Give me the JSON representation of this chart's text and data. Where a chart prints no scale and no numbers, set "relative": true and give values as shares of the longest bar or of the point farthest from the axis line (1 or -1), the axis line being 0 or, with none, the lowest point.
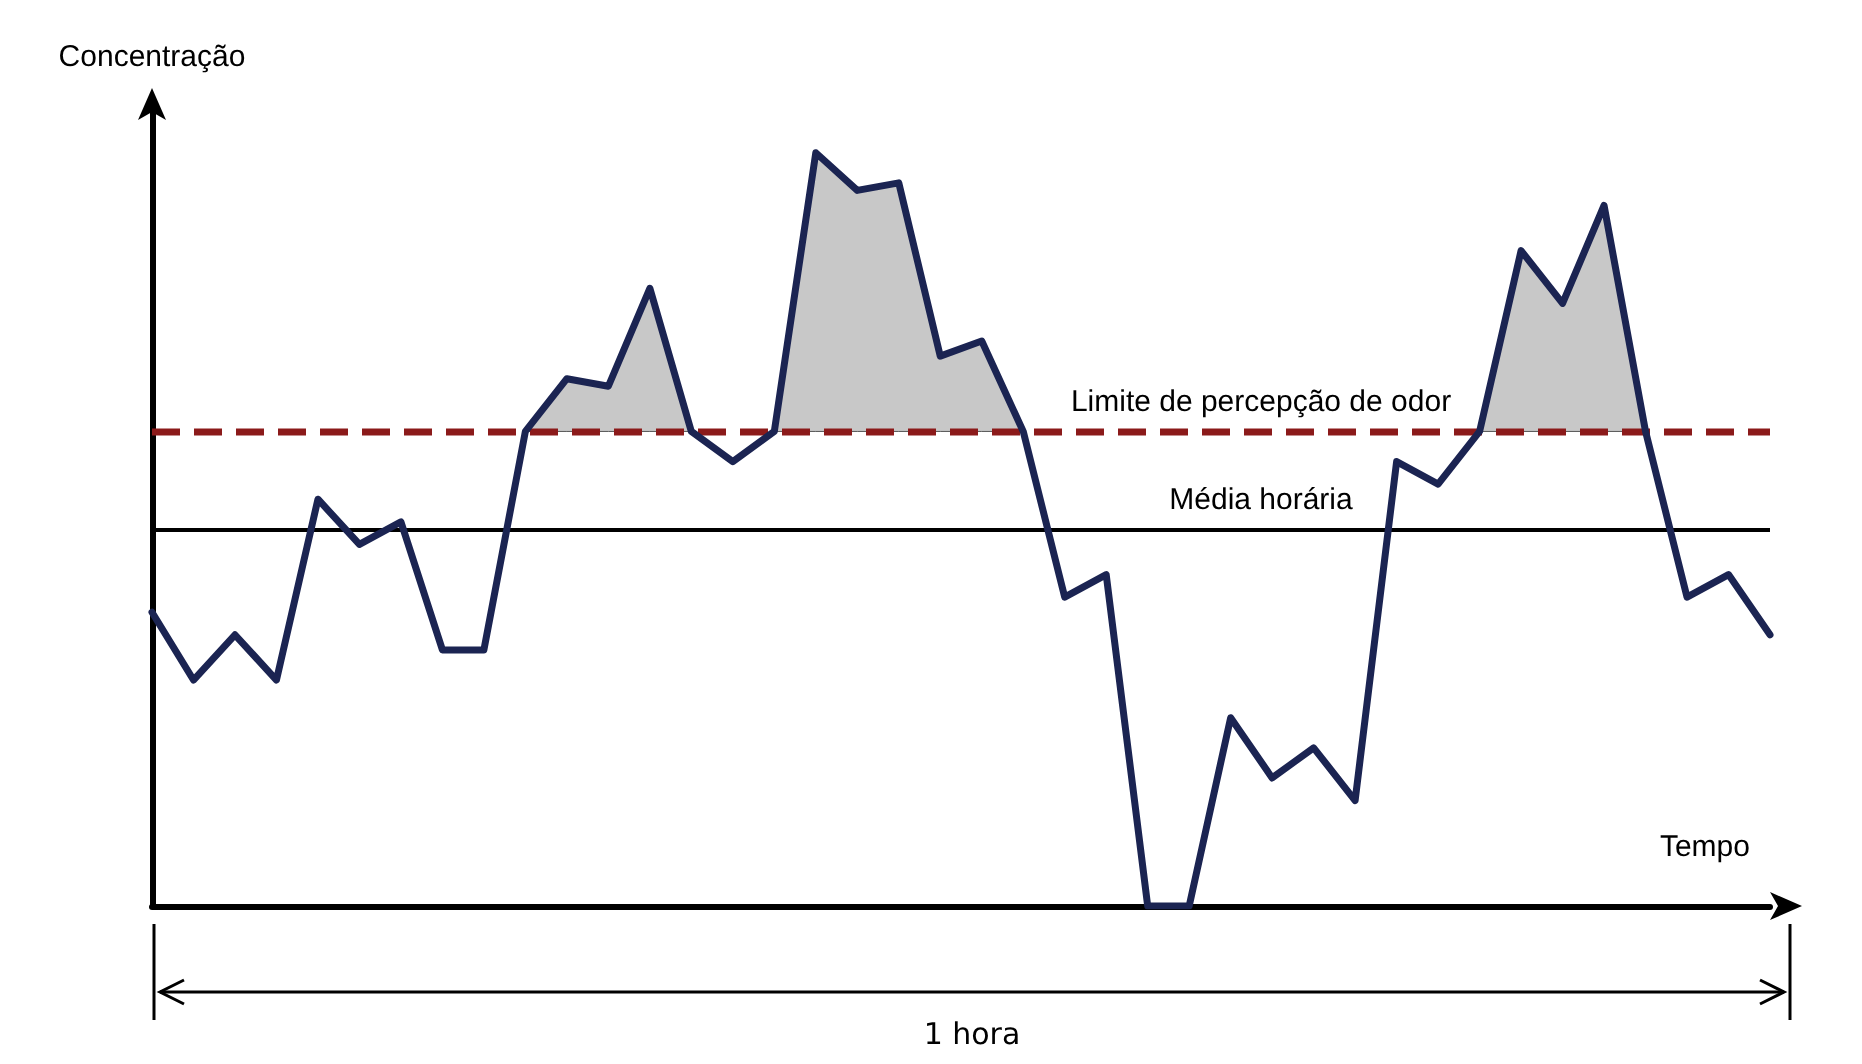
{
  "chart_data": {
    "type": "line",
    "relative": true,
    "xlabel": "Tempo",
    "ylabel": "Concentração",
    "categories": [
      null,
      null,
      null,
      null,
      null,
      null,
      null,
      null,
      null,
      null,
      null,
      null,
      null,
      null,
      null,
      null,
      null,
      null,
      null,
      null,
      null,
      null,
      null,
      null,
      null,
      null,
      null,
      null,
      null,
      null,
      null,
      null,
      null,
      null,
      null,
      null,
      null,
      null,
      null,
      null
    ],
    "series": [
      {
        "color": "#1b2452",
        "values": [
          0.39,
          0.3,
          0.36,
          0.3,
          0.54,
          0.48,
          0.51,
          0.34,
          0.34,
          0.63,
          0.7,
          0.69,
          0.82,
          0.63,
          0.59,
          0.63,
          1,
          0.95,
          0.96,
          0.73,
          0.75,
          0.63,
          0.41,
          0.44,
          0,
          0,
          0.25,
          0.17,
          0.21,
          0.14,
          0.59,
          0.56,
          0.63,
          0.87,
          0.8,
          0.93,
          0.63,
          0.41,
          0.44,
          0.36
        ],
        "lower": [
          null,
          null,
          null,
          null,
          null,
          null,
          null,
          null,
          null,
          0.63,
          0.63,
          0.63,
          0.63,
          0.63,
          null,
          0.63,
          0.63,
          0.63,
          0.63,
          0.63,
          0.63,
          0.63,
          null,
          null,
          null,
          null,
          null,
          null,
          null,
          null,
          null,
          null,
          0.63,
          0.63,
          0.63,
          0.63,
          0.63,
          null,
          null,
          null
        ],
        "upper": [
          null,
          null,
          null,
          null,
          null,
          null,
          null,
          null,
          null,
          0.63,
          0.7,
          0.69,
          0.82,
          0.63,
          null,
          0.63,
          1,
          0.95,
          0.96,
          0.73,
          0.75,
          0.63,
          null,
          null,
          null,
          null,
          null,
          null,
          null,
          null,
          null,
          null,
          0.63,
          0.87,
          0.8,
          0.93,
          0.63,
          null,
          null,
          null
        ]
      }
    ],
    "ref_lines": [
      {
        "axis": "y",
        "value": 0.63,
        "label": "Limite de percepção de odor",
        "color": "#8b1a1a",
        "line_style": "dashed"
      },
      {
        "axis": "y",
        "value": 0.5,
        "label": "Média horária",
        "color": "#000000",
        "line_style": "solid"
      }
    ],
    "annotations": [
      "1 hora"
    ],
    "grid": false,
    "marker": "none",
    "line_style": "solid"
  }
}
